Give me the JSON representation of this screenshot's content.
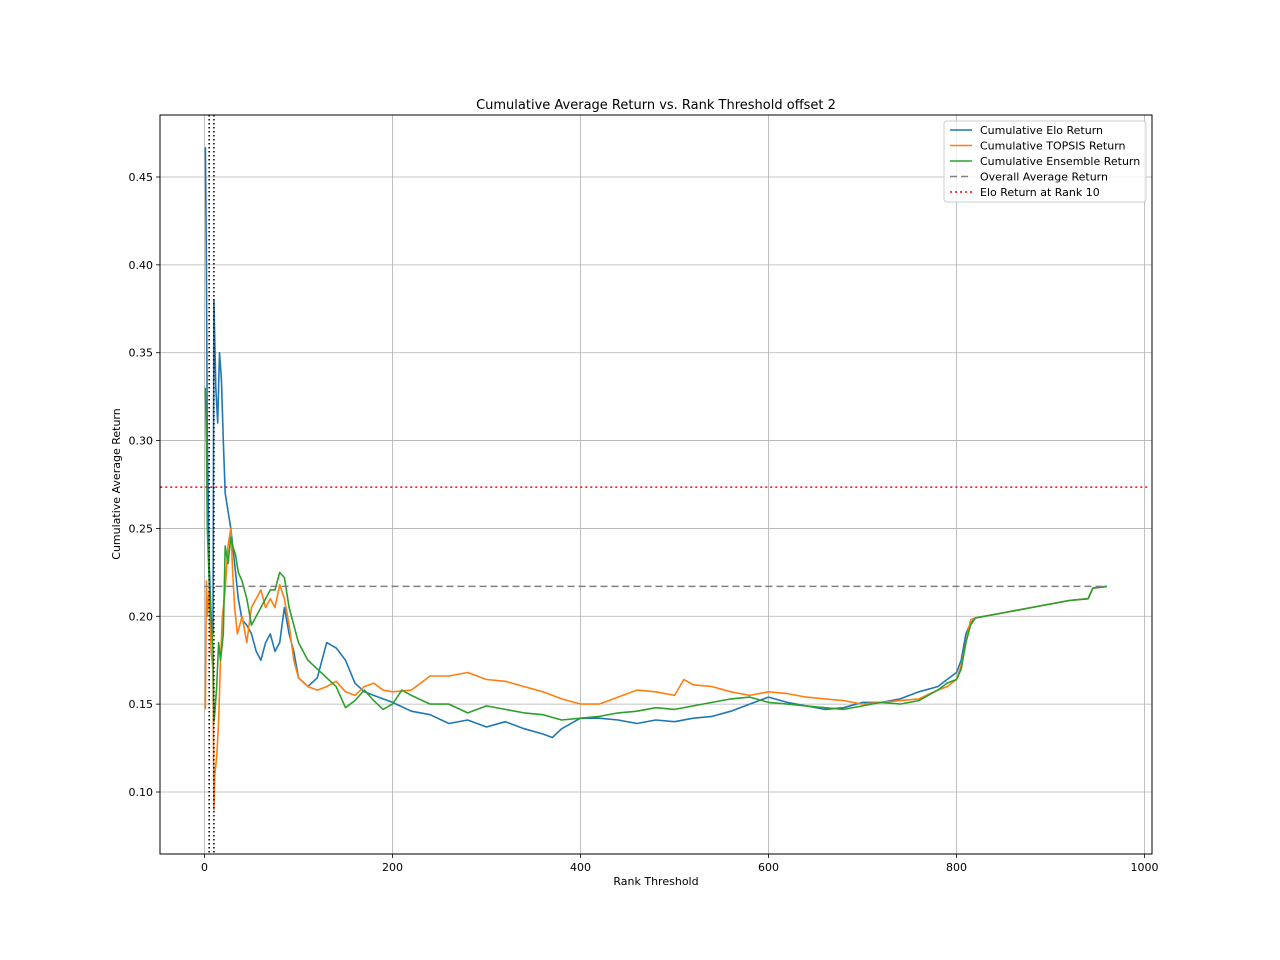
{
  "chart_data": {
    "type": "line",
    "title": "Cumulative Average Return vs. Rank Threshold offset 2",
    "xlabel": "Rank Threshold",
    "ylabel": "Cumulative Average Return",
    "xlim": [
      -47,
      1005
    ],
    "ylim": [
      0.065,
      0.485
    ],
    "x_ticks": [
      0,
      200,
      400,
      600,
      800,
      1000
    ],
    "x_tick_labels": [
      "0",
      "200",
      "400",
      "600",
      "800",
      "1000"
    ],
    "y_ticks": [
      0.1,
      0.15,
      0.2,
      0.25,
      0.3,
      0.35,
      0.4,
      0.45
    ],
    "y_tick_labels": [
      "0.10",
      "0.15",
      "0.20",
      "0.25",
      "0.30",
      "0.35",
      "0.40",
      "0.45"
    ],
    "grid": true,
    "legend_position": "upper right",
    "series": [
      {
        "name": "Cumulative Elo Return",
        "color": "#1f77b4",
        "style": "solid",
        "x": [
          1,
          2,
          3,
          5,
          7,
          9,
          10,
          12,
          14,
          16,
          18,
          20,
          22,
          25,
          28,
          32,
          36,
          40,
          45,
          50,
          55,
          60,
          65,
          70,
          75,
          80,
          85,
          90,
          95,
          100,
          110,
          120,
          130,
          140,
          150,
          160,
          170,
          180,
          190,
          200,
          220,
          240,
          260,
          280,
          300,
          320,
          340,
          360,
          370,
          380,
          400,
          420,
          440,
          460,
          480,
          500,
          520,
          540,
          560,
          580,
          600,
          620,
          640,
          660,
          680,
          700,
          720,
          740,
          760,
          780,
          790,
          800,
          805,
          810,
          815,
          820,
          840,
          860,
          880,
          900,
          920,
          940,
          945,
          960
        ],
        "values": [
          0.467,
          0.4,
          0.3,
          0.23,
          0.2,
          0.19,
          0.38,
          0.33,
          0.31,
          0.35,
          0.335,
          0.3,
          0.27,
          0.26,
          0.25,
          0.23,
          0.21,
          0.198,
          0.195,
          0.19,
          0.18,
          0.175,
          0.185,
          0.19,
          0.18,
          0.185,
          0.205,
          0.19,
          0.18,
          0.165,
          0.16,
          0.165,
          0.185,
          0.182,
          0.175,
          0.162,
          0.157,
          0.155,
          0.153,
          0.151,
          0.146,
          0.144,
          0.139,
          0.141,
          0.137,
          0.14,
          0.136,
          0.133,
          0.131,
          0.136,
          0.142,
          0.142,
          0.141,
          0.139,
          0.141,
          0.14,
          0.142,
          0.143,
          0.146,
          0.15,
          0.154,
          0.151,
          0.149,
          0.147,
          0.148,
          0.151,
          0.151,
          0.153,
          0.157,
          0.16,
          0.164,
          0.168,
          0.175,
          0.19,
          0.196,
          0.199,
          0.201,
          0.203,
          0.205,
          0.207,
          0.209,
          0.21,
          0.216,
          0.217
        ]
      },
      {
        "name": "Cumulative TOPSIS Return",
        "color": "#ff7f0e",
        "style": "solid",
        "x": [
          1,
          2,
          3,
          5,
          7,
          9,
          10,
          11,
          13,
          15,
          17,
          19,
          22,
          25,
          28,
          30,
          32,
          35,
          40,
          45,
          50,
          55,
          60,
          65,
          70,
          75,
          80,
          85,
          90,
          95,
          100,
          110,
          120,
          130,
          140,
          150,
          160,
          170,
          180,
          190,
          200,
          220,
          240,
          260,
          280,
          300,
          320,
          340,
          360,
          380,
          400,
          420,
          440,
          460,
          480,
          500,
          510,
          520,
          540,
          560,
          580,
          600,
          620,
          640,
          660,
          680,
          700,
          720,
          740,
          760,
          780,
          790,
          800,
          805,
          810,
          815,
          820,
          840,
          860,
          880,
          900,
          920,
          940,
          945,
          960
        ],
        "values": [
          0.147,
          0.22,
          0.2,
          0.215,
          0.18,
          0.17,
          0.09,
          0.11,
          0.12,
          0.14,
          0.175,
          0.2,
          0.215,
          0.24,
          0.25,
          0.225,
          0.205,
          0.19,
          0.2,
          0.185,
          0.205,
          0.21,
          0.215,
          0.205,
          0.21,
          0.205,
          0.218,
          0.21,
          0.195,
          0.175,
          0.165,
          0.16,
          0.158,
          0.16,
          0.163,
          0.157,
          0.155,
          0.16,
          0.162,
          0.158,
          0.157,
          0.158,
          0.166,
          0.166,
          0.168,
          0.164,
          0.163,
          0.16,
          0.157,
          0.153,
          0.15,
          0.15,
          0.154,
          0.158,
          0.157,
          0.155,
          0.164,
          0.161,
          0.16,
          0.157,
          0.155,
          0.157,
          0.156,
          0.154,
          0.153,
          0.152,
          0.15,
          0.151,
          0.152,
          0.153,
          0.158,
          0.16,
          0.164,
          0.172,
          0.185,
          0.198,
          0.199,
          0.201,
          0.203,
          0.205,
          0.207,
          0.209,
          0.21,
          0.216,
          0.217
        ]
      },
      {
        "name": "Cumulative Ensemble Return",
        "color": "#2ca02c",
        "style": "solid",
        "x": [
          1,
          2,
          3,
          5,
          7,
          9,
          10,
          11,
          13,
          15,
          17,
          20,
          22,
          25,
          28,
          30,
          33,
          36,
          40,
          45,
          50,
          55,
          60,
          65,
          70,
          75,
          80,
          85,
          90,
          95,
          100,
          110,
          120,
          130,
          140,
          150,
          160,
          170,
          180,
          190,
          200,
          210,
          220,
          240,
          260,
          280,
          300,
          320,
          340,
          360,
          380,
          400,
          420,
          440,
          460,
          480,
          500,
          520,
          540,
          560,
          580,
          600,
          620,
          640,
          660,
          680,
          700,
          720,
          740,
          760,
          780,
          790,
          800,
          805,
          810,
          815,
          820,
          840,
          860,
          880,
          900,
          920,
          940,
          945,
          960
        ],
        "values": [
          0.33,
          0.3,
          0.25,
          0.22,
          0.2,
          0.18,
          0.14,
          0.145,
          0.16,
          0.185,
          0.175,
          0.19,
          0.24,
          0.23,
          0.245,
          0.24,
          0.235,
          0.225,
          0.22,
          0.21,
          0.195,
          0.2,
          0.205,
          0.21,
          0.215,
          0.215,
          0.225,
          0.222,
          0.205,
          0.195,
          0.185,
          0.175,
          0.17,
          0.165,
          0.16,
          0.148,
          0.152,
          0.158,
          0.152,
          0.147,
          0.15,
          0.158,
          0.155,
          0.15,
          0.15,
          0.145,
          0.149,
          0.147,
          0.145,
          0.144,
          0.141,
          0.142,
          0.143,
          0.145,
          0.146,
          0.148,
          0.147,
          0.149,
          0.151,
          0.153,
          0.154,
          0.151,
          0.15,
          0.149,
          0.148,
          0.147,
          0.149,
          0.151,
          0.15,
          0.152,
          0.158,
          0.162,
          0.164,
          0.17,
          0.185,
          0.195,
          0.199,
          0.201,
          0.203,
          0.205,
          0.207,
          0.209,
          0.21,
          0.216,
          0.217
        ]
      },
      {
        "name": "Overall Average Return",
        "color": "#808080",
        "style": "dashed",
        "x": [
          0,
          960
        ],
        "values": [
          0.217,
          0.217
        ]
      },
      {
        "name": "Elo Return at Rank 10",
        "color": "#ff0000",
        "style": "dotted",
        "x": [
          -47,
          1005
        ],
        "values": [
          0.2735,
          0.2735
        ]
      }
    ],
    "vertical_lines": [
      {
        "x": 5,
        "color": "#000000",
        "style": "dotted"
      },
      {
        "x": 10,
        "color": "#000000",
        "style": "dotted"
      }
    ]
  }
}
